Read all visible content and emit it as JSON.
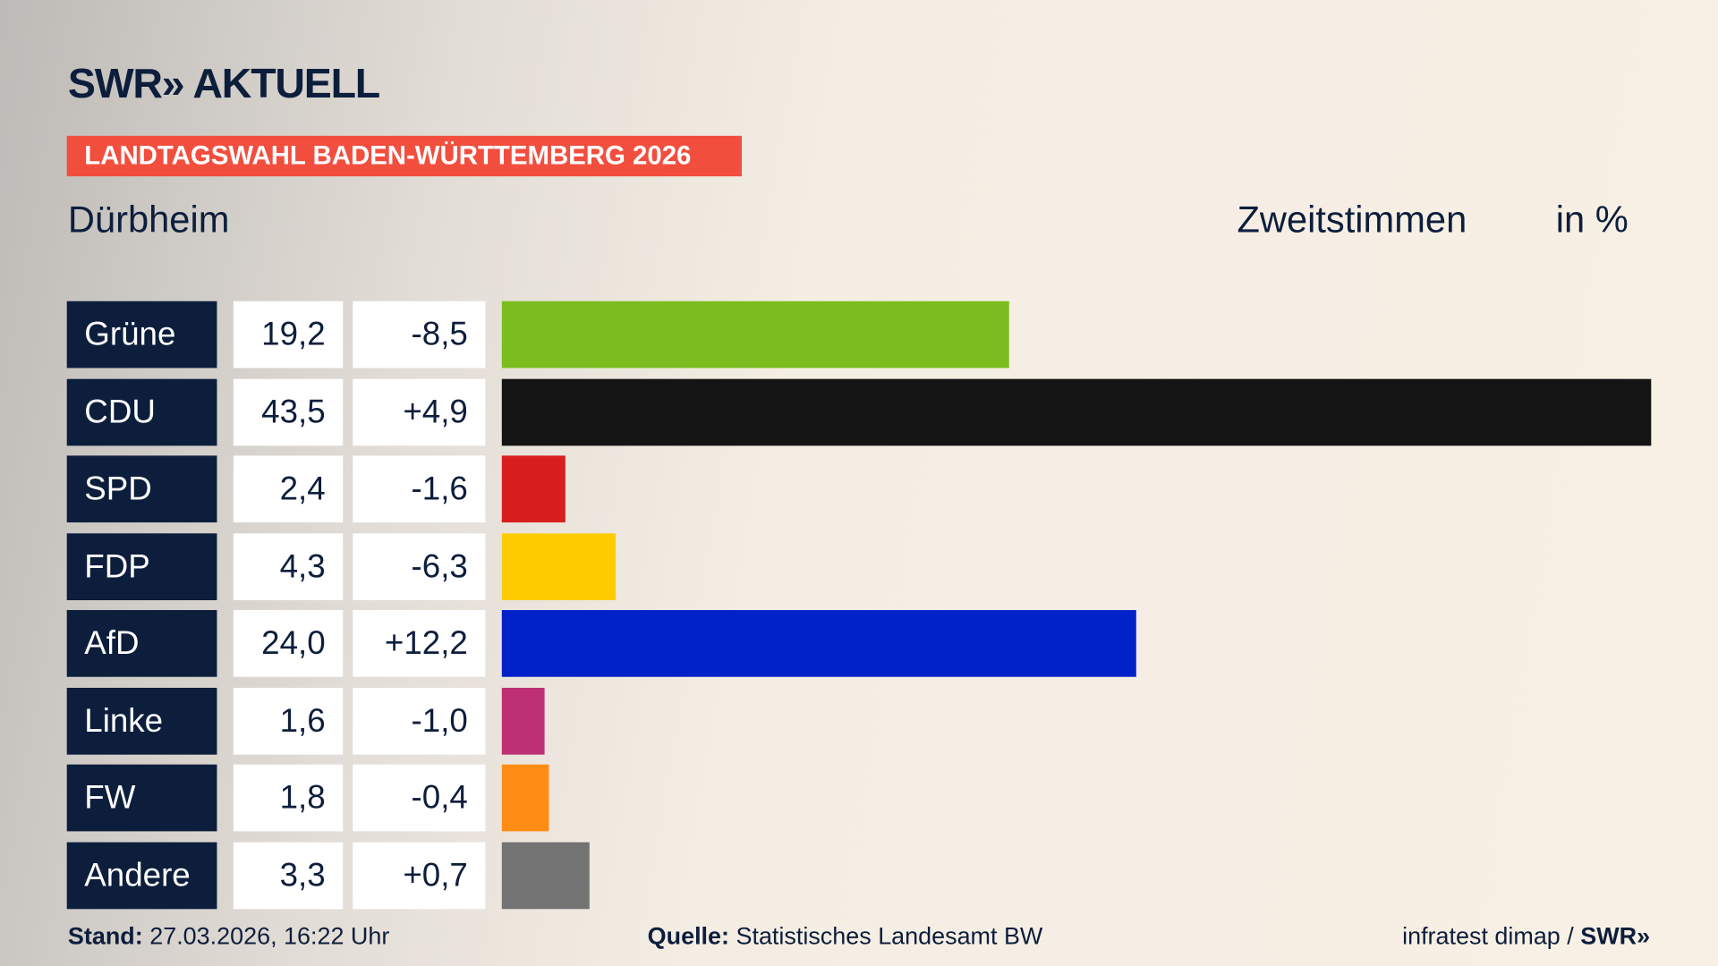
{
  "brand": {
    "logo": "SWR» AKTUELL",
    "banner": "LANDTAGSWAHL BADEN-WÜRTTEMBERG 2026"
  },
  "header": {
    "location": "Dürbheim",
    "type": "Zweitstimmen",
    "unit": "in %"
  },
  "chart_data": {
    "type": "bar",
    "orientation": "horizontal",
    "categories": [
      "Grüne",
      "CDU",
      "SPD",
      "FDP",
      "AfD",
      "Linke",
      "FW",
      "Andere"
    ],
    "values": [
      19.2,
      43.5,
      2.4,
      4.3,
      24.0,
      1.6,
      1.8,
      3.3
    ],
    "value_labels": [
      "19,2",
      "43,5",
      "2,4",
      "4,3",
      "24,0",
      "1,6",
      "1,8",
      "3,3"
    ],
    "diff_labels": [
      "-8,5",
      "+4,9",
      "-1,6",
      "-6,3",
      "+12,2",
      "-1,0",
      "-0,4",
      "+0,7"
    ],
    "colors": [
      "#7bbd1e",
      "#141414",
      "#d81e1e",
      "#ffcc00",
      "#0022c8",
      "#be3075",
      "#ff8c14",
      "#737373"
    ]
  },
  "footer": {
    "stand_label": "Stand:",
    "stand_value": "27.03.2026, 16:22 Uhr",
    "source_label": "Quelle:",
    "source_value": "Statistisches Landesamt BW",
    "credit": "infratest dimap / ",
    "credit_logo": "SWR»"
  }
}
